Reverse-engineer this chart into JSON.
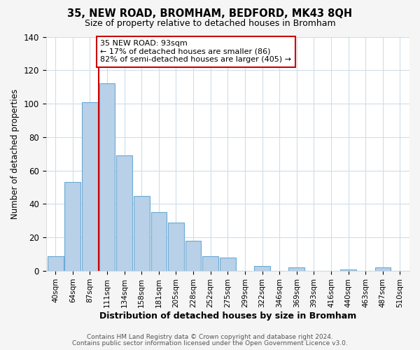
{
  "title": "35, NEW ROAD, BROMHAM, BEDFORD, MK43 8QH",
  "subtitle": "Size of property relative to detached houses in Bromham",
  "xlabel": "Distribution of detached houses by size in Bromham",
  "ylabel": "Number of detached properties",
  "bar_labels": [
    "40sqm",
    "64sqm",
    "87sqm",
    "111sqm",
    "134sqm",
    "158sqm",
    "181sqm",
    "205sqm",
    "228sqm",
    "252sqm",
    "275sqm",
    "299sqm",
    "322sqm",
    "346sqm",
    "369sqm",
    "393sqm",
    "416sqm",
    "440sqm",
    "463sqm",
    "487sqm",
    "510sqm"
  ],
  "bar_values": [
    9,
    53,
    101,
    112,
    69,
    45,
    35,
    29,
    18,
    9,
    8,
    0,
    3,
    0,
    2,
    0,
    0,
    1,
    0,
    2,
    0
  ],
  "bar_color": "#b8d0e8",
  "bar_edge_color": "#6aaad4",
  "vline_color": "#cc0000",
  "ylim": [
    0,
    140
  ],
  "annotation_text": "35 NEW ROAD: 93sqm\n← 17% of detached houses are smaller (86)\n82% of semi-detached houses are larger (405) →",
  "annotation_box_color": "#ffffff",
  "annotation_box_edge": "#cc0000",
  "footer_line1": "Contains HM Land Registry data © Crown copyright and database right 2024.",
  "footer_line2": "Contains public sector information licensed under the Open Government Licence v3.0.",
  "background_color": "#f5f5f5",
  "plot_bg_color": "#ffffff",
  "grid_color": "#d0dde8"
}
